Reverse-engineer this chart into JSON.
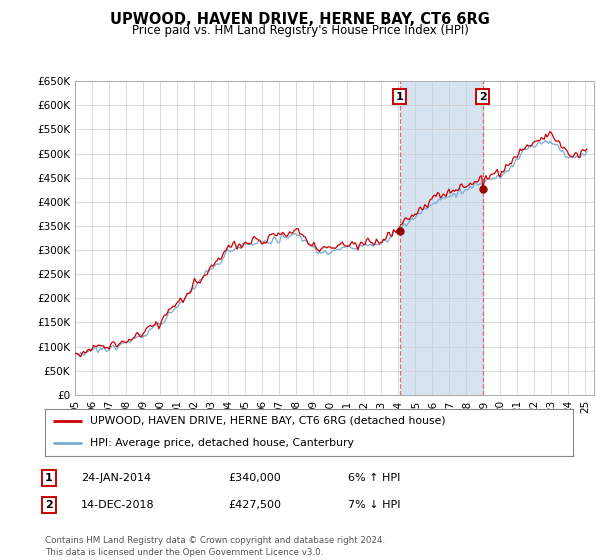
{
  "title": "UPWOOD, HAVEN DRIVE, HERNE BAY, CT6 6RG",
  "subtitle": "Price paid vs. HM Land Registry's House Price Index (HPI)",
  "ylim": [
    0,
    650000
  ],
  "xlim_start": 1995.0,
  "xlim_end": 2025.5,
  "sale1_date": 2014.08,
  "sale1_price": 340000,
  "sale2_date": 2018.96,
  "sale2_price": 427500,
  "legend_line1": "UPWOOD, HAVEN DRIVE, HERNE BAY, CT6 6RG (detached house)",
  "legend_line2": "HPI: Average price, detached house, Canterbury",
  "footer1": "Contains HM Land Registry data © Crown copyright and database right 2024.",
  "footer2": "This data is licensed under the Open Government Licence v3.0.",
  "line_color_red": "#cc0000",
  "line_color_blue": "#7aadd4",
  "shade_color": "#cfe0f0",
  "marker_box_color": "#cc0000",
  "grid_color": "#cccccc",
  "bg_color": "#ffffff"
}
